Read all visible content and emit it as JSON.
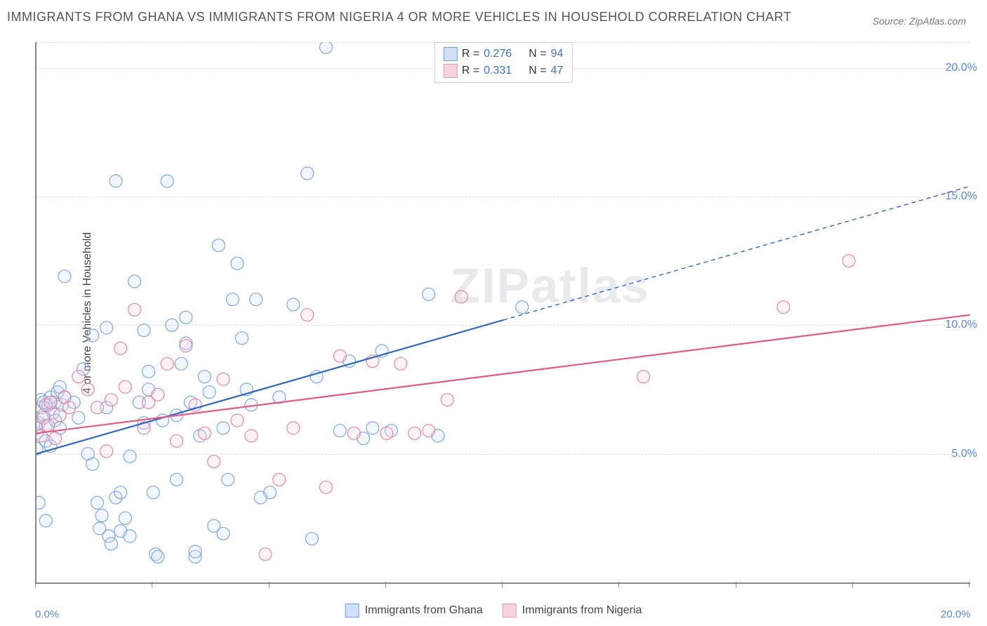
{
  "title": "IMMIGRANTS FROM GHANA VS IMMIGRANTS FROM NIGERIA 4 OR MORE VEHICLES IN HOUSEHOLD CORRELATION CHART",
  "source": "Source: ZipAtlas.com",
  "watermark": "ZIPatlas",
  "y_axis_label": "4 or more Vehicles in Household",
  "chart": {
    "type": "scatter",
    "xlim": [
      0,
      20
    ],
    "ylim": [
      0,
      21
    ],
    "x_ticks_minor": [
      0,
      2.5,
      5,
      7.5,
      10,
      12.5,
      15,
      17.5,
      20
    ],
    "x_ticks_labeled": [
      {
        "v": 0,
        "label": "0.0%"
      },
      {
        "v": 20,
        "label": "20.0%"
      }
    ],
    "y_ticks": [
      {
        "v": 5,
        "label": "5.0%"
      },
      {
        "v": 10,
        "label": "10.0%"
      },
      {
        "v": 15,
        "label": "15.0%"
      },
      {
        "v": 20,
        "label": "20.0%"
      }
    ],
    "grid_color": "#dddddd",
    "axis_color": "#888888",
    "background_color": "#ffffff",
    "marker_radius": 9,
    "marker_fill_opacity": 0.28,
    "marker_stroke_opacity": 0.9,
    "marker_stroke_width": 1.2,
    "line_width": 2.2
  },
  "legend_stats": [
    {
      "swatch_fill": "#cfe0f7",
      "swatch_stroke": "#6f9fe3",
      "r_label": "R =",
      "r_value": "0.276",
      "n_label": "N =",
      "n_value": "94"
    },
    {
      "swatch_fill": "#f7d4dd",
      "swatch_stroke": "#e59aaf",
      "r_label": "R =",
      "r_value": "0.331",
      "n_label": "N =",
      "n_value": "47"
    }
  ],
  "legend_series": [
    {
      "swatch_fill": "#cfe0f7",
      "swatch_stroke": "#6f9fe3",
      "label": "Immigrants from Ghana"
    },
    {
      "swatch_fill": "#f7d4dd",
      "swatch_stroke": "#e59aaf",
      "label": "Immigrants from Nigeria"
    }
  ],
  "series": [
    {
      "name": "Immigrants from Ghana",
      "color_stroke": "#6f9fe3",
      "color_fill": "#cfe0f7",
      "trend": {
        "x1": 0,
        "y1": 5.0,
        "x2": 10,
        "y2": 10.2,
        "color": "#2f66c4",
        "dash_beyond_x": 10,
        "x3": 20,
        "y3": 15.4
      },
      "points": [
        [
          0.0,
          5.2
        ],
        [
          0.0,
          5.8
        ],
        [
          0.05,
          6.2
        ],
        [
          0.1,
          6.8
        ],
        [
          0.1,
          7.1
        ],
        [
          0.15,
          6.5
        ],
        [
          0.15,
          7.0
        ],
        [
          0.2,
          5.5
        ],
        [
          0.2,
          6.1
        ],
        [
          0.25,
          6.9
        ],
        [
          0.3,
          7.2
        ],
        [
          0.3,
          5.3
        ],
        [
          0.35,
          6.6
        ],
        [
          0.4,
          7.0
        ],
        [
          0.4,
          6.3
        ],
        [
          0.45,
          7.4
        ],
        [
          0.5,
          6.0
        ],
        [
          0.5,
          7.6
        ],
        [
          0.55,
          6.9
        ],
        [
          0.6,
          7.2
        ],
        [
          0.05,
          3.1
        ],
        [
          0.2,
          2.4
        ],
        [
          0.6,
          11.9
        ],
        [
          0.8,
          7.0
        ],
        [
          0.9,
          6.4
        ],
        [
          1.0,
          8.3
        ],
        [
          1.1,
          5.0
        ],
        [
          1.2,
          9.6
        ],
        [
          1.2,
          4.6
        ],
        [
          1.3,
          3.1
        ],
        [
          1.35,
          2.1
        ],
        [
          1.4,
          2.6
        ],
        [
          1.5,
          6.8
        ],
        [
          1.5,
          9.9
        ],
        [
          1.55,
          1.8
        ],
        [
          1.6,
          1.5
        ],
        [
          1.7,
          15.6
        ],
        [
          1.7,
          3.3
        ],
        [
          1.8,
          3.5
        ],
        [
          1.8,
          2.0
        ],
        [
          1.9,
          2.5
        ],
        [
          2.0,
          1.8
        ],
        [
          2.0,
          4.9
        ],
        [
          2.1,
          11.7
        ],
        [
          2.2,
          7.0
        ],
        [
          2.3,
          6.2
        ],
        [
          2.3,
          9.8
        ],
        [
          2.4,
          8.2
        ],
        [
          2.4,
          7.5
        ],
        [
          2.5,
          3.5
        ],
        [
          2.55,
          1.1
        ],
        [
          2.6,
          1.0
        ],
        [
          2.7,
          6.3
        ],
        [
          2.8,
          15.6
        ],
        [
          2.9,
          10.0
        ],
        [
          3.0,
          4.0
        ],
        [
          3.0,
          6.5
        ],
        [
          3.1,
          8.5
        ],
        [
          3.2,
          9.3
        ],
        [
          3.2,
          10.3
        ],
        [
          3.3,
          7.0
        ],
        [
          3.4,
          1.0
        ],
        [
          3.4,
          1.2
        ],
        [
          3.5,
          5.7
        ],
        [
          3.6,
          8.0
        ],
        [
          3.7,
          7.4
        ],
        [
          3.8,
          2.2
        ],
        [
          3.9,
          13.1
        ],
        [
          4.0,
          1.9
        ],
        [
          4.0,
          6.0
        ],
        [
          4.1,
          4.0
        ],
        [
          4.2,
          11.0
        ],
        [
          4.3,
          12.4
        ],
        [
          4.4,
          9.5
        ],
        [
          4.5,
          7.5
        ],
        [
          4.6,
          6.9
        ],
        [
          4.7,
          11.0
        ],
        [
          5.0,
          3.5
        ],
        [
          5.2,
          7.2
        ],
        [
          5.5,
          10.8
        ],
        [
          5.8,
          15.9
        ],
        [
          5.9,
          1.7
        ],
        [
          6.2,
          20.8
        ],
        [
          6.5,
          5.9
        ],
        [
          6.7,
          8.6
        ],
        [
          7.0,
          5.6
        ],
        [
          7.2,
          6.0
        ],
        [
          7.4,
          9.0
        ],
        [
          7.6,
          5.9
        ],
        [
          8.4,
          11.2
        ],
        [
          8.6,
          5.7
        ],
        [
          10.4,
          10.7
        ],
        [
          6.0,
          8.0
        ],
        [
          4.8,
          3.3
        ]
      ]
    },
    {
      "name": "Immigrants from Nigeria",
      "color_stroke": "#e07c95",
      "color_fill": "#f7d4dd",
      "trend": {
        "x1": 0,
        "y1": 5.8,
        "x2": 20,
        "y2": 10.4,
        "color": "#e65a82",
        "dash_beyond_x": null
      },
      "points": [
        [
          0.0,
          6.0
        ],
        [
          0.1,
          5.7
        ],
        [
          0.15,
          6.4
        ],
        [
          0.2,
          6.9
        ],
        [
          0.25,
          6.1
        ],
        [
          0.3,
          7.0
        ],
        [
          0.4,
          5.6
        ],
        [
          0.5,
          6.5
        ],
        [
          0.6,
          7.2
        ],
        [
          0.7,
          6.8
        ],
        [
          0.9,
          8.0
        ],
        [
          1.1,
          7.5
        ],
        [
          1.3,
          6.8
        ],
        [
          1.5,
          5.1
        ],
        [
          1.6,
          7.1
        ],
        [
          1.8,
          9.1
        ],
        [
          1.9,
          7.6
        ],
        [
          2.1,
          10.6
        ],
        [
          2.3,
          6.0
        ],
        [
          2.4,
          7.0
        ],
        [
          2.6,
          7.3
        ],
        [
          2.8,
          8.5
        ],
        [
          3.0,
          5.5
        ],
        [
          3.2,
          9.2
        ],
        [
          3.4,
          6.9
        ],
        [
          3.6,
          5.8
        ],
        [
          3.8,
          4.7
        ],
        [
          4.0,
          7.9
        ],
        [
          4.3,
          6.3
        ],
        [
          4.6,
          5.7
        ],
        [
          4.9,
          1.1
        ],
        [
          5.2,
          4.0
        ],
        [
          5.5,
          6.0
        ],
        [
          5.8,
          10.4
        ],
        [
          6.2,
          3.7
        ],
        [
          6.5,
          8.8
        ],
        [
          6.8,
          5.8
        ],
        [
          7.2,
          8.6
        ],
        [
          7.5,
          5.8
        ],
        [
          7.8,
          8.5
        ],
        [
          8.1,
          5.8
        ],
        [
          8.4,
          5.9
        ],
        [
          8.8,
          7.1
        ],
        [
          9.1,
          11.1
        ],
        [
          16.0,
          10.7
        ],
        [
          17.4,
          12.5
        ],
        [
          13.0,
          8.0
        ]
      ]
    }
  ]
}
